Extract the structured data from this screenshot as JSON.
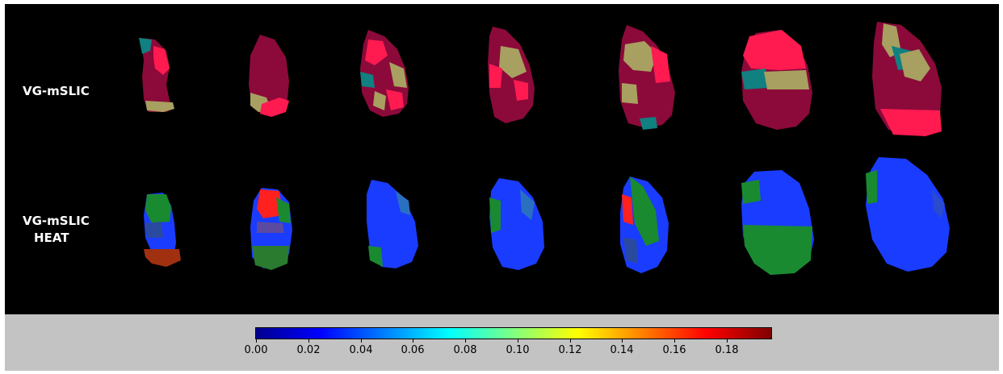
{
  "rows": [
    {
      "label": "VG-mSLIC"
    },
    {
      "label_lines": [
        "VG-mSLIC",
        "HEAT"
      ]
    }
  ],
  "colorbar": {
    "ticks": [
      "0.00",
      "0.02",
      "0.04",
      "0.06",
      "0.08",
      "0.10",
      "0.12",
      "0.14",
      "0.16",
      "0.18"
    ],
    "tick_values": [
      0.0,
      0.02,
      0.04,
      0.06,
      0.08,
      0.1,
      0.12,
      0.14,
      0.16,
      0.18
    ],
    "range": [
      0.0,
      0.197
    ],
    "colormap": "jet"
  },
  "colors": {
    "segment_maroon": "#8b0a3a",
    "segment_pink": "#ff1a50",
    "segment_khaki": "#a8a060",
    "segment_teal": "#108080",
    "heat_blue": "#1a3cff",
    "heat_green": "#1a8a30",
    "heat_red": "#ff2020",
    "heat_brown": "#a03010"
  }
}
